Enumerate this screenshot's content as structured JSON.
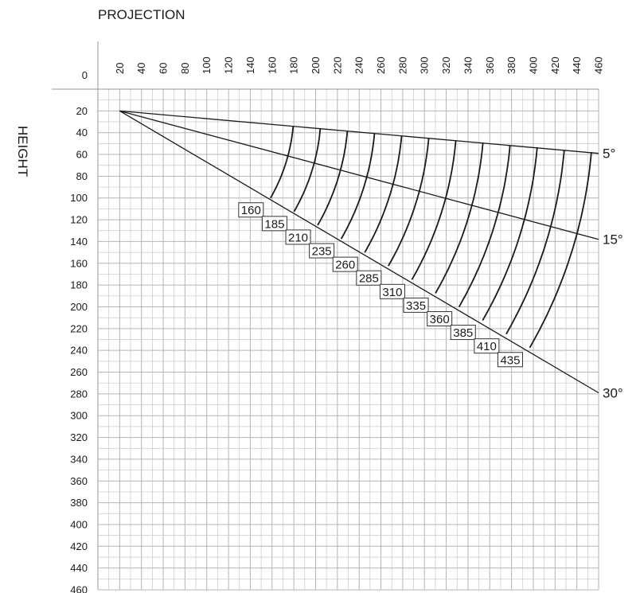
{
  "chart_data": {
    "type": "line",
    "title": "",
    "xlabel": "PROJECTION",
    "ylabel": "HEIGHT",
    "xlim": [
      0,
      460
    ],
    "ylim": [
      0,
      460
    ],
    "y_axis_inverted": true,
    "x_axis_position": "top",
    "grid": true,
    "origin_label": "0",
    "x_ticks": [
      20,
      40,
      60,
      80,
      100,
      120,
      140,
      160,
      180,
      200,
      220,
      240,
      260,
      280,
      300,
      320,
      340,
      360,
      380,
      400,
      420,
      440,
      460
    ],
    "y_ticks": [
      20,
      40,
      60,
      80,
      100,
      120,
      140,
      160,
      180,
      200,
      220,
      240,
      260,
      280,
      300,
      320,
      340,
      360,
      380,
      400,
      420,
      440,
      460
    ],
    "origin_point": [
      20,
      20
    ],
    "angle_lines": [
      {
        "label": "5°",
        "angle_deg": 5,
        "end": [
          460,
          59
        ]
      },
      {
        "label": "15°",
        "angle_deg": 15,
        "end": [
          460,
          138
        ]
      },
      {
        "label": "30°",
        "angle_deg": 30,
        "end": [
          460,
          279
        ]
      }
    ],
    "boom_labels": [
      "160",
      "185",
      "210",
      "235",
      "260",
      "285",
      "310",
      "335",
      "360",
      "385",
      "410",
      "435"
    ],
    "boom_lengths": [
      160,
      185,
      210,
      235,
      260,
      285,
      310,
      335,
      360,
      385,
      410,
      435
    ]
  },
  "colors": {
    "line": "#1a1a1a",
    "grid": "#c8c8c8",
    "background": "#ffffff"
  }
}
